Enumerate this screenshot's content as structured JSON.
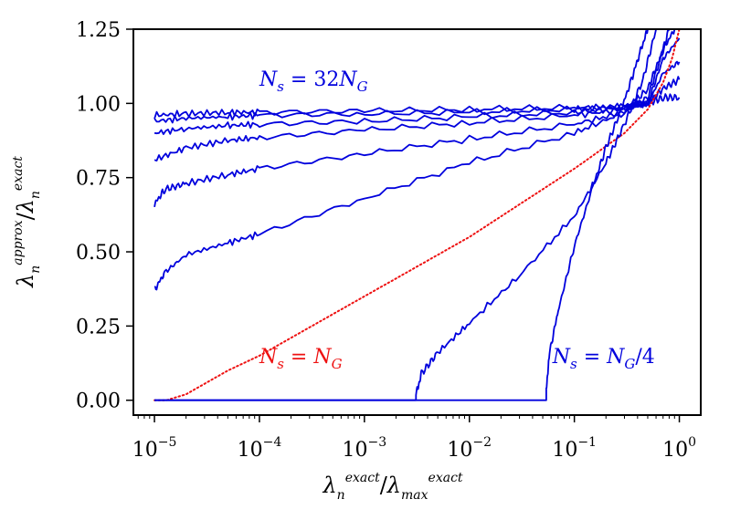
{
  "chart_data": {
    "type": "line",
    "xscale": "log",
    "xlim": [
      6.3e-06,
      1.6
    ],
    "ylim": [
      -0.05,
      1.25
    ],
    "grid": false,
    "legend": "none",
    "xlabel": {
      "base": "λ",
      "sub": "n",
      "sup": "exact",
      "sep": "/",
      "base2": "λ",
      "sub2": "max",
      "sup2": "exact"
    },
    "ylabel": {
      "base": "λ",
      "sub": "n",
      "sup": "approx",
      "sep": "/",
      "base2": "λ",
      "sub2": "n",
      "sup2": "exact"
    },
    "x_ticks": [
      {
        "value": 1e-05,
        "base": "10",
        "exp": "−5"
      },
      {
        "value": 0.0001,
        "base": "10",
        "exp": "−4"
      },
      {
        "value": 0.001,
        "base": "10",
        "exp": "−3"
      },
      {
        "value": 0.01,
        "base": "10",
        "exp": "−2"
      },
      {
        "value": 0.1,
        "base": "10",
        "exp": "−1"
      },
      {
        "value": 1,
        "base": "10",
        "exp": "0"
      }
    ],
    "y_ticks": [
      {
        "value": 0.0,
        "label": "0.00"
      },
      {
        "value": 0.25,
        "label": "0.25"
      },
      {
        "value": 0.5,
        "label": "0.50"
      },
      {
        "value": 0.75,
        "label": "0.75"
      },
      {
        "value": 1.0,
        "label": "1.00"
      },
      {
        "value": 1.25,
        "label": "1.25"
      }
    ],
    "colors": {
      "blue": "#0000dd",
      "red": "#ee1111"
    },
    "series": [
      {
        "color": "#0000dd",
        "style": "solid",
        "x": [
          1e-05,
          2e-05,
          5e-05,
          0.0001,
          0.001,
          0.01,
          0.1,
          0.3,
          0.5,
          0.7,
          1.0
        ],
        "y": [
          0.96,
          0.965,
          0.97,
          0.97,
          0.975,
          0.98,
          0.985,
          0.99,
          1.0,
          1.02,
          1.02
        ]
      },
      {
        "color": "#0000dd",
        "style": "solid",
        "x": [
          1e-05,
          2e-05,
          5e-05,
          0.0001,
          0.001,
          0.01,
          0.1,
          0.3,
          0.5,
          0.7,
          1.0
        ],
        "y": [
          0.94,
          0.95,
          0.955,
          0.96,
          0.965,
          0.97,
          0.98,
          0.99,
          1.0,
          1.05,
          1.08
        ]
      },
      {
        "color": "#0000dd",
        "style": "solid",
        "x": [
          1e-05,
          2e-05,
          5e-05,
          0.0001,
          0.001,
          0.01,
          0.1,
          0.3,
          0.5,
          0.7,
          1.0
        ],
        "y": [
          0.9,
          0.915,
          0.925,
          0.93,
          0.94,
          0.955,
          0.97,
          0.985,
          1.0,
          1.1,
          1.14
        ]
      },
      {
        "color": "#0000dd",
        "style": "solid",
        "x": [
          1e-05,
          2e-05,
          5e-05,
          0.0001,
          0.001,
          0.01,
          0.1,
          0.3,
          0.5,
          0.7,
          1.0
        ],
        "y": [
          0.81,
          0.85,
          0.875,
          0.885,
          0.91,
          0.935,
          0.96,
          0.98,
          1.0,
          1.15,
          1.22
        ]
      },
      {
        "color": "#0000dd",
        "style": "solid",
        "x": [
          1e-05,
          1.25e-05,
          2e-05,
          5e-05,
          0.0001,
          0.001,
          0.01,
          0.1,
          0.3,
          0.5,
          0.7,
          0.9
        ],
        "y": [
          0.66,
          0.71,
          0.73,
          0.76,
          0.78,
          0.83,
          0.88,
          0.93,
          0.97,
          1.02,
          1.18,
          1.25
        ]
      },
      {
        "color": "#0000dd",
        "style": "solid",
        "x": [
          1e-05,
          1.25e-05,
          2e-05,
          5e-05,
          0.0001,
          0.001,
          0.01,
          0.1,
          0.3,
          0.5,
          0.65,
          0.8
        ],
        "y": [
          0.37,
          0.43,
          0.49,
          0.53,
          0.56,
          0.68,
          0.8,
          0.9,
          0.97,
          1.05,
          1.15,
          1.25
        ]
      },
      {
        "color": "#ee1111",
        "style": "dotted",
        "x": [
          1e-05,
          1.3e-05,
          2e-05,
          5e-05,
          0.0001,
          0.001,
          0.01,
          0.1,
          0.3,
          0.5,
          0.7,
          0.85,
          1.0
        ],
        "y": [
          0.0,
          0.0,
          0.02,
          0.1,
          0.15,
          0.35,
          0.55,
          0.78,
          0.9,
          0.98,
          1.07,
          1.15,
          1.25
        ]
      },
      {
        "color": "#0000dd",
        "style": "solid",
        "x": [
          1e-05,
          0.0031,
          0.0031,
          0.0035,
          0.005,
          0.01,
          0.03,
          0.1,
          0.2,
          0.3,
          0.45,
          0.6
        ],
        "y": [
          0.0,
          0.0,
          0.02,
          0.09,
          0.16,
          0.26,
          0.42,
          0.62,
          0.8,
          0.93,
          1.08,
          1.25
        ]
      },
      {
        "color": "#0000dd",
        "style": "solid",
        "x": [
          1e-05,
          0.054,
          0.054,
          0.058,
          0.07,
          0.1,
          0.15,
          0.2,
          0.28,
          0.35,
          0.42,
          0.5
        ],
        "y": [
          0.0,
          0.0,
          0.04,
          0.16,
          0.3,
          0.52,
          0.72,
          0.85,
          0.98,
          1.08,
          1.17,
          1.25
        ]
      }
    ],
    "annotations": [
      {
        "lhs_base": "N",
        "lhs_sub": "s",
        "eq": " = 32",
        "rhs_base": "N",
        "rhs_sub": "G",
        "rhs_tail": "",
        "x": 0.0001,
        "y": 1.06,
        "color": "#0000dd"
      },
      {
        "lhs_base": "N",
        "lhs_sub": "s",
        "eq": " = ",
        "rhs_base": "N",
        "rhs_sub": "G",
        "rhs_tail": "",
        "x": 0.0001,
        "y": 0.125,
        "color": "#ee1111"
      },
      {
        "lhs_base": "N",
        "lhs_sub": "s",
        "eq": " = ",
        "rhs_base": "N",
        "rhs_sub": "G",
        "rhs_tail": "/4",
        "x": 0.062,
        "y": 0.125,
        "color": "#0000dd"
      }
    ]
  }
}
